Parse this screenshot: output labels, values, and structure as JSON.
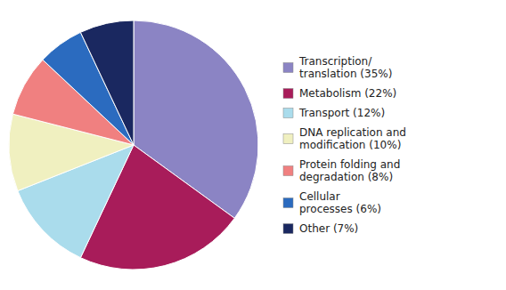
{
  "chart_data": {
    "type": "pie",
    "categories": [
      "Transcription/\ntranslation (35%)",
      "Metabolism (22%)",
      "Transport (12%)",
      "DNA replication and\nmodification (10%)",
      "Protein folding and\ndegradation (8%)",
      "Cellular\nprocesses (6%)",
      "Other (7%)"
    ],
    "values": [
      35,
      22,
      12,
      10,
      8,
      6,
      7
    ],
    "colors": [
      "#8b84c4",
      "#a81c5a",
      "#aadcec",
      "#f0f0c0",
      "#f08080",
      "#2b6bbf",
      "#1a2860"
    ],
    "legend": "right"
  }
}
